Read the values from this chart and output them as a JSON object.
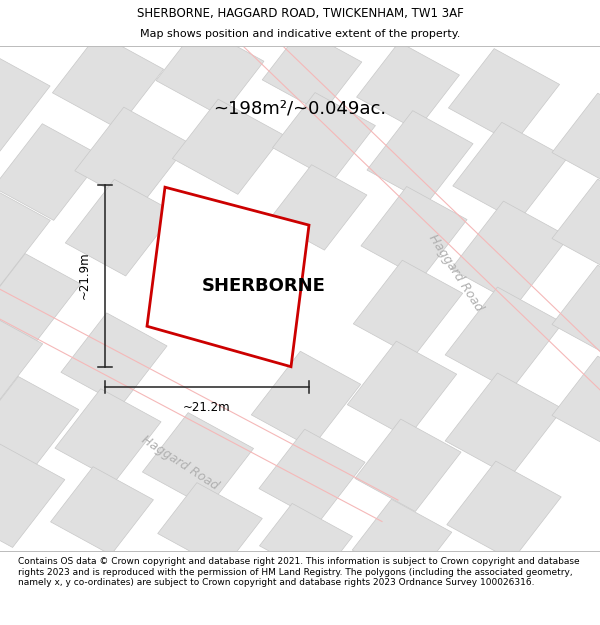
{
  "title_line1": "SHERBORNE, HAGGARD ROAD, TWICKENHAM, TW1 3AF",
  "title_line2": "Map shows position and indicative extent of the property.",
  "area_label": "~198m²/~0.049ac.",
  "property_name": "SHERBORNE",
  "dim_height": "~21.9m",
  "dim_width": "~21.2m",
  "road_label_bottom": "Haggard Road",
  "road_label_right": "Haggard Road",
  "footer_text": "Contains OS data © Crown copyright and database right 2021. This information is subject to Crown copyright and database rights 2023 and is reproduced with the permission of HM Land Registry. The polygons (including the associated geometry, namely x, y co-ordinates) are subject to Crown copyright and database rights 2023 Ordnance Survey 100026316.",
  "map_bg": "#efefef",
  "property_fill": "#ffffff",
  "property_outline": "#cc0000",
  "block_fill": "#e0e0e0",
  "block_stroke": "#c8c8c8",
  "road_line_color": "#f5b8b8",
  "dim_line_color": "#222222",
  "title_fontsize": 8.5,
  "subtitle_fontsize": 8.0,
  "area_fontsize": 13,
  "property_name_fontsize": 13,
  "dim_fontsize": 8.5,
  "road_fontsize": 9,
  "footer_fontsize": 6.5
}
